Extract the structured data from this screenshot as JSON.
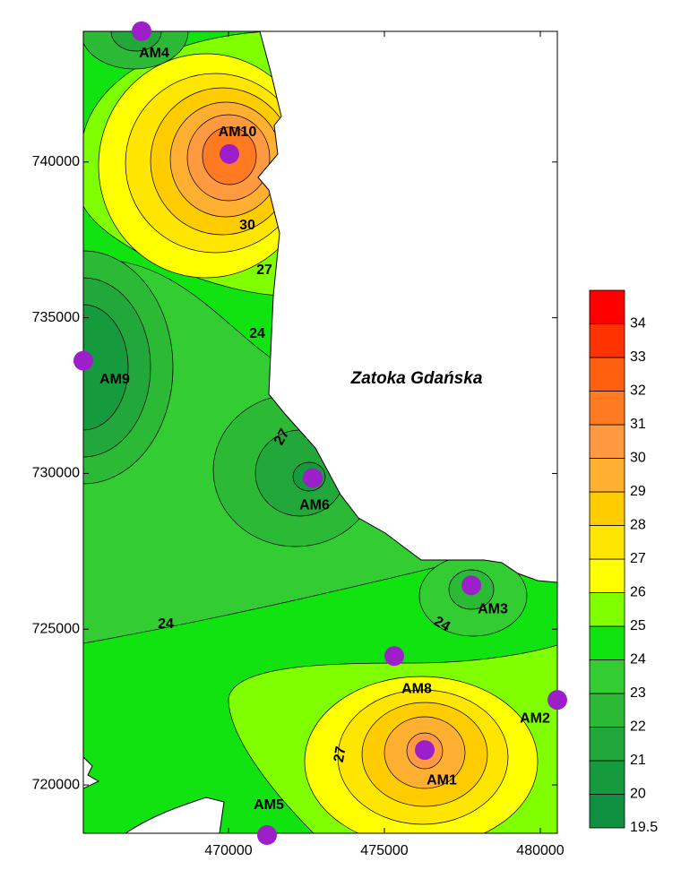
{
  "map": {
    "sea_label": "Zatoka Gdańska",
    "xlim": [
      465345,
      480546
    ],
    "ylim": [
      718448,
      744195
    ],
    "xticks": [
      470000,
      475000,
      480000
    ],
    "yticks": [
      720000,
      725000,
      730000,
      735000,
      740000
    ],
    "stations": [
      {
        "name": "AM4",
        "x": 467213,
        "y": 744200
      },
      {
        "name": "AM10",
        "x": 470029,
        "y": 740259
      },
      {
        "name": "AM9",
        "x": 465345,
        "y": 733620
      },
      {
        "name": "AM6",
        "x": 472701,
        "y": 729856
      },
      {
        "name": "AM3",
        "x": 477787,
        "y": 726408
      },
      {
        "name": "AM8",
        "x": 475316,
        "y": 724138
      },
      {
        "name": "AM2",
        "x": 480546,
        "y": 722730
      },
      {
        "name": "AM1",
        "x": 476293,
        "y": 721121
      },
      {
        "name": "AM5",
        "x": 471236,
        "y": 718390
      }
    ],
    "colorbar": {
      "levels": [
        19.5,
        20,
        21,
        22,
        23,
        24,
        25,
        26,
        27,
        28,
        29,
        30,
        31,
        32,
        33,
        34
      ],
      "colors": [
        "#0e9040",
        "#169a3e",
        "#22a83a",
        "#2bb936",
        "#33cc33",
        "#11e311",
        "#80ff00",
        "#ffff00",
        "#ffe600",
        "#ffcc00",
        "#ffb030",
        "#ff9a40",
        "#ff7a20",
        "#ff6010",
        "#ff3300",
        "#ff0000"
      ]
    },
    "contour_labels": [
      30,
      27,
      24,
      27,
      24,
      24,
      27
    ]
  }
}
